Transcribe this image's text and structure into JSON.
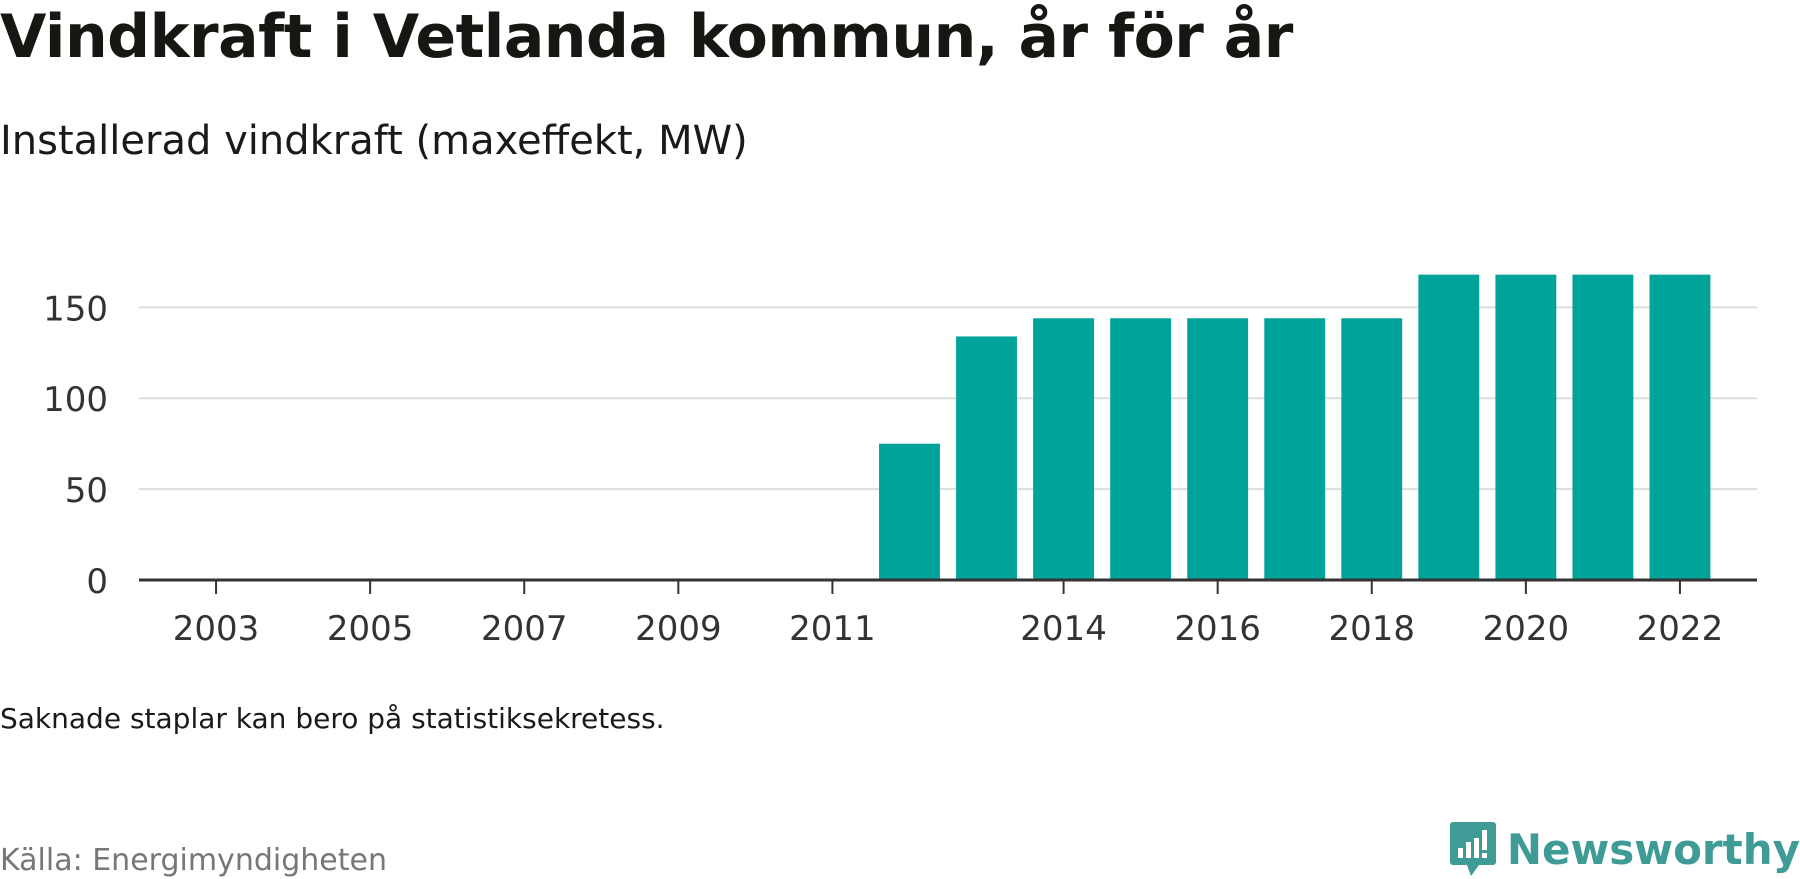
{
  "title": "Vindkraft i Vetlanda kommun, år för år",
  "subtitle": "Installerad vindkraft (maxeffekt, MW)",
  "note": "Saknade staplar kan bero på statistiksekretess.",
  "source": "Källa: Energimyndigheten",
  "brand": {
    "name": "Newsworthy",
    "color": "#3e9b95"
  },
  "colors": {
    "bar": "#00a39a",
    "grid": "#dddddd",
    "axis": "#333333",
    "tick_text": "#333333"
  },
  "chart_data": {
    "type": "bar",
    "title": "Vindkraft i Vetlanda kommun, år för år",
    "subtitle": "Installerad vindkraft (maxeffekt, MW)",
    "xlabel": "",
    "ylabel": "",
    "x_range": [
      2002,
      2023
    ],
    "ylim": [
      0,
      170
    ],
    "y_ticks": [
      0,
      50,
      100,
      150
    ],
    "x_tick_labels": [
      "2003",
      "2005",
      "2007",
      "2009",
      "2011",
      "2014",
      "2016",
      "2018",
      "2020",
      "2022"
    ],
    "grid": true,
    "legend": "none",
    "categories": [
      "2012",
      "2013",
      "2014",
      "2015",
      "2016",
      "2017",
      "2018",
      "2019",
      "2020",
      "2021",
      "2022"
    ],
    "values": [
      75,
      134,
      144,
      144,
      144,
      144,
      144,
      168,
      168,
      168,
      168
    ]
  }
}
